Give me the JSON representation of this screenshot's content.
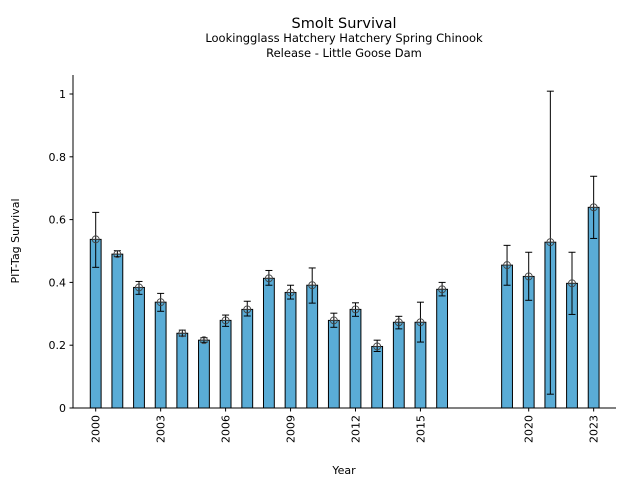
{
  "chart_data": {
    "type": "bar",
    "title": "Smolt Survival",
    "subtitle_lines": [
      "Lookingglass Hatchery Hatchery Spring Chinook",
      "Release - Little Goose Dam"
    ],
    "xlabel": "Year",
    "ylabel": "PIT-Tag Survival",
    "xlim": [
      1999.2,
      2024.0
    ],
    "ylim": [
      0,
      1.05
    ],
    "xticks": [
      2000,
      2003,
      2006,
      2009,
      2012,
      2015,
      2020,
      2023
    ],
    "xtick_labels": [
      "2000",
      "2003",
      "2006",
      "2009",
      "2012",
      "2015",
      "2020",
      "2023"
    ],
    "yticks": [
      0,
      0.2,
      0.4,
      0.6,
      0.8,
      1
    ],
    "ytick_labels": [
      "0",
      "0.2",
      "0.4",
      "0.6",
      "0.8",
      "1"
    ],
    "grid": false,
    "bar_color": "#5aacd6",
    "series": [
      {
        "name": "PIT-Tag Survival",
        "x": [
          2000,
          2001,
          2002,
          2003,
          2004,
          2005,
          2006,
          2007,
          2008,
          2009,
          2010,
          2011,
          2012,
          2013,
          2014,
          2015,
          2016,
          2019,
          2020,
          2021,
          2022,
          2023
        ],
        "values": [
          0.537,
          0.49,
          0.384,
          0.337,
          0.238,
          0.216,
          0.279,
          0.314,
          0.413,
          0.368,
          0.391,
          0.279,
          0.314,
          0.196,
          0.273,
          0.273,
          0.378,
          0.455,
          0.419,
          0.528,
          0.397,
          0.639
        ],
        "err_upper": [
          0.623,
          0.501,
          0.403,
          0.365,
          0.248,
          0.224,
          0.296,
          0.34,
          0.438,
          0.391,
          0.446,
          0.302,
          0.335,
          0.216,
          0.292,
          0.337,
          0.4,
          0.518,
          0.496,
          1.009,
          0.496,
          0.738
        ],
        "err_lower": [
          0.448,
          0.482,
          0.362,
          0.308,
          0.229,
          0.209,
          0.26,
          0.293,
          0.391,
          0.347,
          0.334,
          0.257,
          0.292,
          0.18,
          0.252,
          0.21,
          0.357,
          0.391,
          0.343,
          0.044,
          0.298,
          0.54
        ]
      }
    ]
  }
}
